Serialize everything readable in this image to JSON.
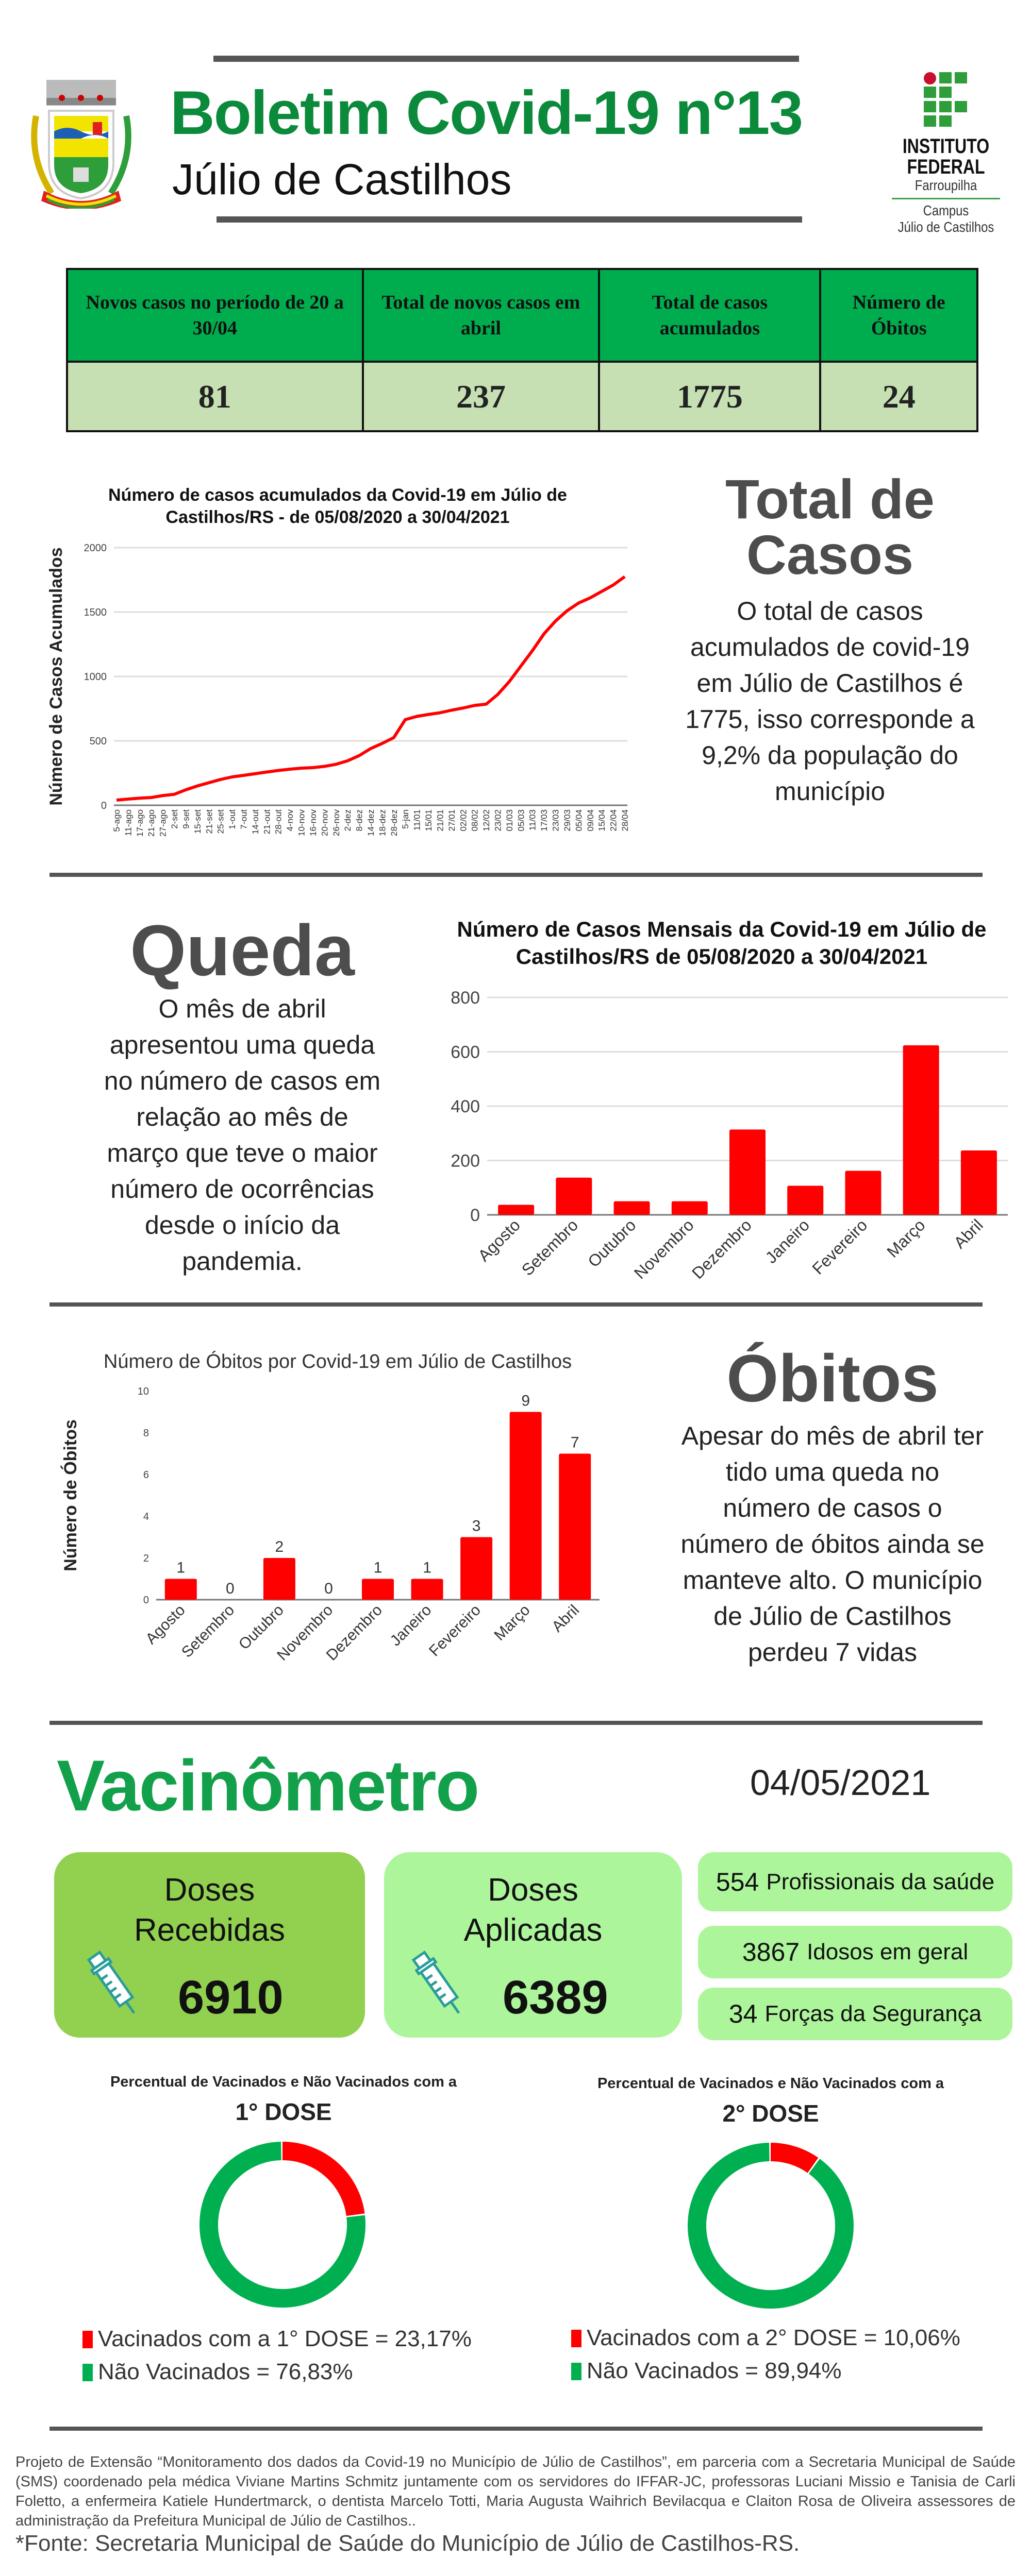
{
  "header": {
    "title": "Boletim Covid-19 n°13",
    "subtitle": "Júlio de Castilhos",
    "if_logo": {
      "line1": "INSTITUTO",
      "line2": "FEDERAL",
      "line3": "Farroupilha",
      "line4": "Campus",
      "line5": "Júlio de Castilhos"
    }
  },
  "stats_table": {
    "headers": [
      "Novos casos no período de 20 a 30/04",
      "Total de novos casos em abril",
      "Total de casos acumulados",
      "Número de Óbitos"
    ],
    "values": [
      "81",
      "237",
      "1775",
      "24"
    ]
  },
  "total_section": {
    "heading": "Total de Casos",
    "text": "O total de casos acumulados de covid-19 em Júlio de Castilhos é 1775, isso corresponde a 9,2% da população do município"
  },
  "queda_section": {
    "heading": "Queda",
    "text": "O mês de abril apresentou uma queda no número de casos em relação ao mês de março que teve o maior número de ocorrências desde o início da pandemia."
  },
  "obitos_section": {
    "heading": "Óbitos",
    "text": "Apesar do mês de abril ter tido uma queda no número de casos o número de óbitos ainda se manteve alto. O município de Júlio de Castilhos perdeu 7 vidas"
  },
  "colors": {
    "green": "#0b8a3b",
    "red": "#ff0000",
    "donut_green": "#00b050",
    "table_header": "#00ad4e",
    "table_cell": "#c6e0b4",
    "card_received": "#92d050",
    "card_applied": "#adf59a"
  },
  "chart_data": [
    {
      "type": "line",
      "title": "Número de casos acumulados da Covid-19 em Júlio de Castilhos/RS - de 05/08/2020 a 30/04/2021",
      "xlabel": "",
      "ylabel": "Número de Casos Acumulados",
      "ylim": [
        0,
        2000
      ],
      "yticks": [
        0,
        500,
        1000,
        1500,
        2000
      ],
      "x": [
        "5-ago",
        "11-ago",
        "17-ago",
        "21-ago",
        "27-ago",
        "2-set",
        "9-set",
        "15-set",
        "21-set",
        "25-set",
        "1-out",
        "7-out",
        "14-out",
        "21-out",
        "28-out",
        "4-nov",
        "10-nov",
        "16-nov",
        "20-nov",
        "26-nov",
        "2-dez",
        "8-dez",
        "14-dez",
        "18-dez",
        "28-dez",
        "5-jan",
        "11/01",
        "15/01",
        "21/01",
        "27/01",
        "02/02",
        "08/02",
        "12/02",
        "23/02",
        "01/03",
        "05/03",
        "11/03",
        "17/03",
        "23/03",
        "29/03",
        "05/04",
        "09/04",
        "15/04",
        "22/04",
        "28/04"
      ],
      "values": [
        40,
        48,
        55,
        60,
        75,
        85,
        120,
        150,
        175,
        200,
        220,
        232,
        245,
        258,
        270,
        280,
        288,
        292,
        302,
        318,
        345,
        385,
        440,
        480,
        525,
        665,
        690,
        705,
        718,
        738,
        755,
        775,
        785,
        860,
        960,
        1080,
        1200,
        1330,
        1430,
        1510,
        1570,
        1610,
        1660,
        1710,
        1775
      ],
      "grid": true
    },
    {
      "type": "bar",
      "title": "Número de Casos Mensais da Covid-19 em Júlio de Castilhos/RS de 05/08/2020 a 30/04/2021",
      "xlabel": "",
      "ylabel": "",
      "ylim": [
        0,
        800
      ],
      "yticks": [
        0,
        200,
        400,
        600,
        800
      ],
      "categories": [
        "Agosto",
        "Setembro",
        "Outubro",
        "Novembro",
        "Dezembro",
        "Janeiro",
        "Fevereiro",
        "Março",
        "Abril"
      ],
      "values": [
        37,
        137,
        50,
        50,
        314,
        107,
        162,
        624,
        237
      ],
      "grid": true
    },
    {
      "type": "bar",
      "title": "Número de Óbitos  por Covid-19 em Júlio de Castilhos",
      "xlabel": "",
      "ylabel": "Número de Óbitos",
      "ylim": [
        0,
        10
      ],
      "yticks": [
        0,
        2,
        4,
        6,
        8,
        10
      ],
      "categories": [
        "Agosto",
        "Setembro",
        "Outubro",
        "Novembro",
        "Dezembro",
        "Janeiro",
        "Fevereiro",
        "Março",
        "Abril"
      ],
      "values": [
        1,
        0,
        2,
        0,
        1,
        1,
        3,
        9,
        7
      ],
      "data_labels": true,
      "grid": false
    },
    {
      "type": "pie",
      "title": "Percentual de Vacinados e Não Vacinados com a",
      "subtitle": "1° DOSE",
      "slices": [
        {
          "label": "Vacinados com a 1° DOSE = 23,17%",
          "value": 23.17
        },
        {
          "label": "Não Vacinados = 76,83%",
          "value": 76.83
        }
      ]
    },
    {
      "type": "pie",
      "title": "Percentual de Vacinados e Não Vacinados com a",
      "subtitle": "2° DOSE",
      "slices": [
        {
          "label": "Vacinados com a 2° DOSE = 10,06%",
          "value": 10.06
        },
        {
          "label": "Não Vacinados = 89,94%",
          "value": 89.94
        }
      ]
    }
  ],
  "vacinometro": {
    "heading": "Vacinômetro",
    "date": "04/05/2021",
    "received": {
      "line1": "Doses",
      "line2": "Recebidas",
      "value": "6910"
    },
    "applied": {
      "line1": "Doses",
      "line2": "Aplicadas",
      "value": "6389"
    },
    "groups": [
      {
        "value": "554",
        "label": "Profissionais da saúde"
      },
      {
        "value": "3867",
        "label": "Idosos em geral"
      },
      {
        "value": "34",
        "label": "Forças da Segurança"
      }
    ]
  },
  "footer": {
    "text": "Projeto de Extensão “Monitoramento dos dados da Covid-19 no Município de Júlio de Castilhos”, em parceria com a Secretaria Municipal de Saúde (SMS) coordenado pela médica Viviane Martins Schmitz juntamente com os servidores do IFFAR-JC, professoras Luciani Missio e Tanisia de Carli Foletto, a enfermeira Katiele Hundertmarck, o dentista Marcelo Totti, Maria Augusta Waihrich Bevilacqua e Claiton Rosa de Oliveira assessores de administração da Prefeitura Municipal de Júlio de Castilhos..",
    "source": "*Fonte: Secretaria Municipal de Saúde do Município de Júlio de Castilhos-RS."
  }
}
